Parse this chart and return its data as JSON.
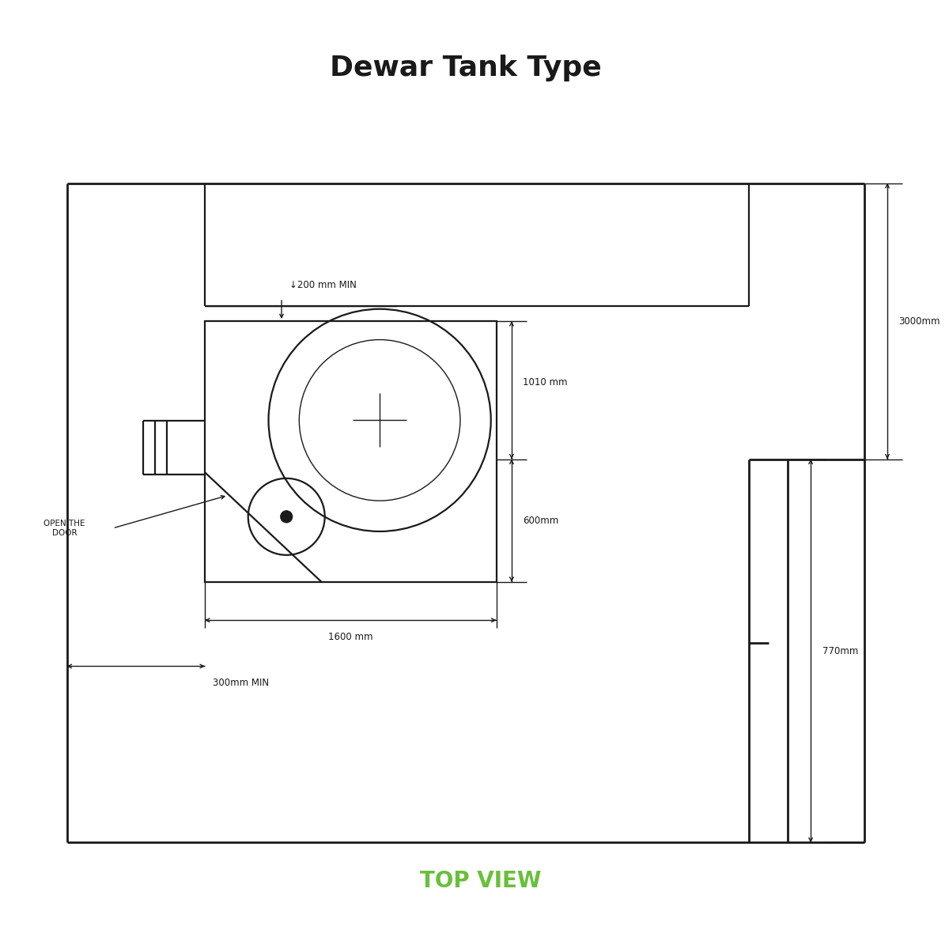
{
  "title": "Dewar Tank Type",
  "top_view_label": "TOP VIEW",
  "top_view_color": "#6abf3a",
  "title_fontsize": 26,
  "bg_color": "#ffffff",
  "line_color": "#1a1a1a",
  "annotations": {
    "200mm": "↓200 mm MIN",
    "1010mm": "1010 mm",
    "600mm": "600mm",
    "1600mm": "1600 mm",
    "300mm": "300mm MIN",
    "3000mm": "3000mm",
    "770mm": "770mm",
    "open_door": "OPEN THE\nDOOR"
  }
}
